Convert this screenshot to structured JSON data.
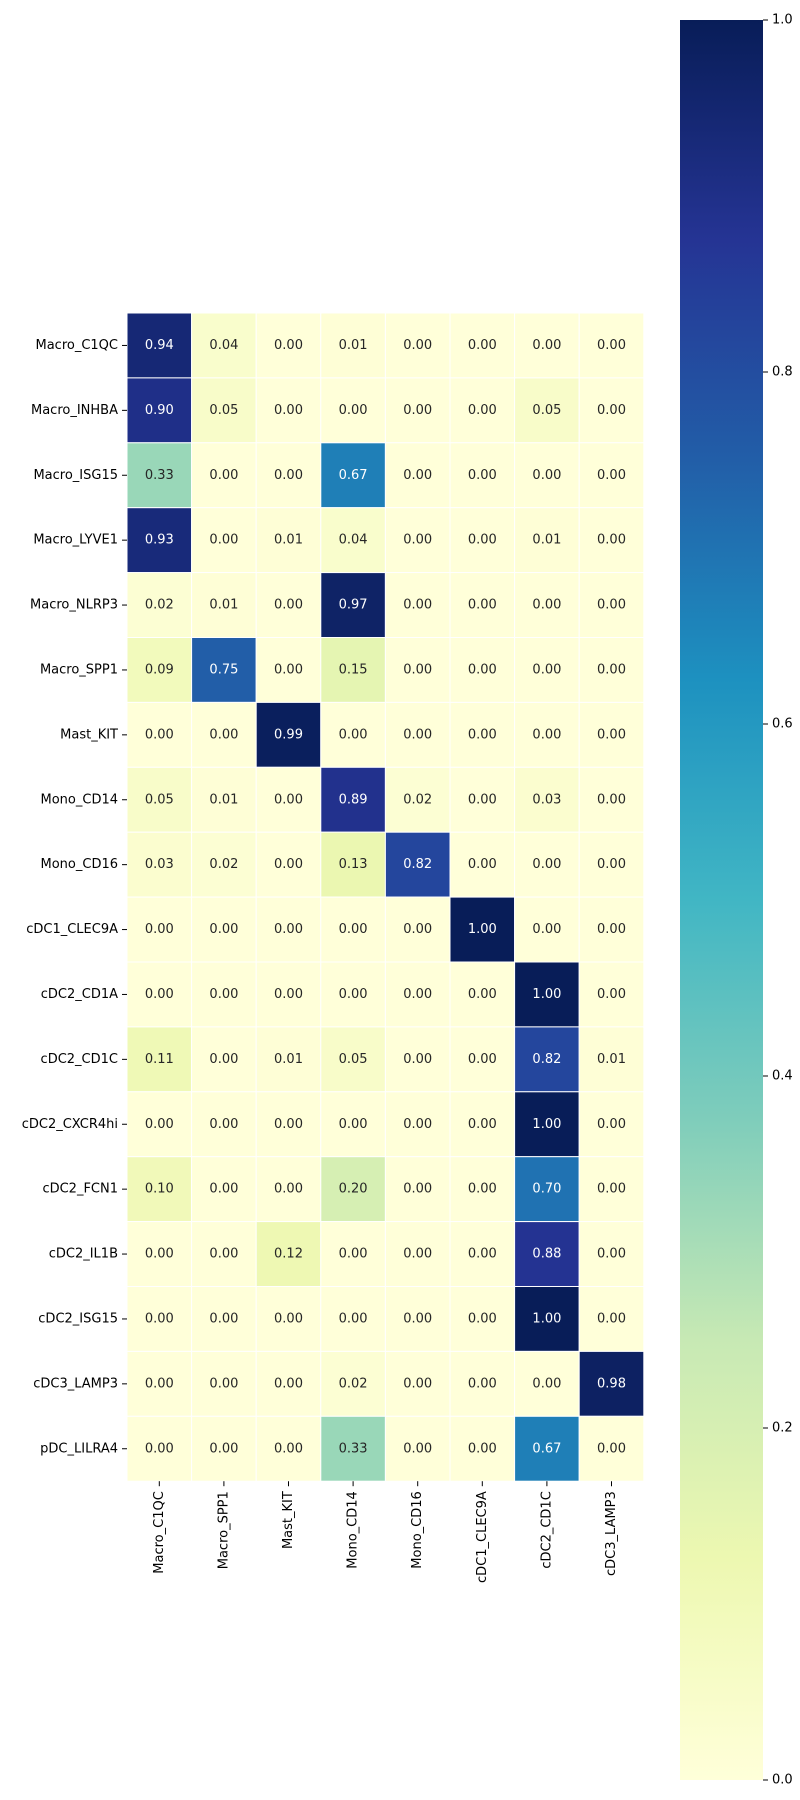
{
  "chart_data": {
    "type": "heatmap",
    "title": "",
    "xlabel": "",
    "ylabel": "",
    "x_categories": [
      "Macro_C1QC",
      "Macro_SPP1",
      "Mast_KIT",
      "Mono_CD14",
      "Mono_CD16",
      "cDC1_CLEC9A",
      "cDC2_CD1C",
      "cDC3_LAMP3"
    ],
    "y_categories": [
      "Macro_C1QC",
      "Macro_INHBA",
      "Macro_ISG15",
      "Macro_LYVE1",
      "Macro_NLRP3",
      "Macro_SPP1",
      "Mast_KIT",
      "Mono_CD14",
      "Mono_CD16",
      "cDC1_CLEC9A",
      "cDC2_CD1A",
      "cDC2_CD1C",
      "cDC2_CXCR4hi",
      "cDC2_FCN1",
      "cDC2_IL1B",
      "cDC2_ISG15",
      "cDC3_LAMP3",
      "pDC_LILRA4"
    ],
    "values": [
      [
        0.94,
        0.04,
        0.0,
        0.01,
        0.0,
        0.0,
        0.0,
        0.0
      ],
      [
        0.9,
        0.05,
        0.0,
        0.0,
        0.0,
        0.0,
        0.05,
        0.0
      ],
      [
        0.33,
        0.0,
        0.0,
        0.67,
        0.0,
        0.0,
        0.0,
        0.0
      ],
      [
        0.93,
        0.0,
        0.01,
        0.04,
        0.0,
        0.0,
        0.01,
        0.0
      ],
      [
        0.02,
        0.01,
        0.0,
        0.97,
        0.0,
        0.0,
        0.0,
        0.0
      ],
      [
        0.09,
        0.75,
        0.0,
        0.15,
        0.0,
        0.0,
        0.0,
        0.0
      ],
      [
        0.0,
        0.0,
        0.99,
        0.0,
        0.0,
        0.0,
        0.0,
        0.0
      ],
      [
        0.05,
        0.01,
        0.0,
        0.89,
        0.02,
        0.0,
        0.03,
        0.0
      ],
      [
        0.03,
        0.02,
        0.0,
        0.13,
        0.82,
        0.0,
        0.0,
        0.0
      ],
      [
        0.0,
        0.0,
        0.0,
        0.0,
        0.0,
        1.0,
        0.0,
        0.0
      ],
      [
        0.0,
        0.0,
        0.0,
        0.0,
        0.0,
        0.0,
        1.0,
        0.0
      ],
      [
        0.11,
        0.0,
        0.01,
        0.05,
        0.0,
        0.0,
        0.82,
        0.01
      ],
      [
        0.0,
        0.0,
        0.0,
        0.0,
        0.0,
        0.0,
        1.0,
        0.0
      ],
      [
        0.1,
        0.0,
        0.0,
        0.2,
        0.0,
        0.0,
        0.7,
        0.0
      ],
      [
        0.0,
        0.0,
        0.12,
        0.0,
        0.0,
        0.0,
        0.88,
        0.0
      ],
      [
        0.0,
        0.0,
        0.0,
        0.0,
        0.0,
        0.0,
        1.0,
        0.0
      ],
      [
        0.0,
        0.0,
        0.0,
        0.02,
        0.0,
        0.0,
        0.0,
        0.98
      ],
      [
        0.0,
        0.0,
        0.0,
        0.33,
        0.0,
        0.0,
        0.67,
        0.0
      ]
    ],
    "value_format": "0.00",
    "colormap": "YlGnBu",
    "colorbar": {
      "range": [
        0.0,
        1.0
      ],
      "ticks": [
        0.0,
        0.2,
        0.4,
        0.6,
        0.8,
        1.0
      ],
      "tick_labels": [
        "0.0",
        "0.2",
        "0.4",
        "0.6",
        "0.8",
        "1.0"
      ]
    },
    "grid": false,
    "legend": "colorbar-right"
  },
  "colors": {
    "cell_border": "#ffffff",
    "colormap_stops": [
      "#ffffd9",
      "#edf8b1",
      "#c7e9b4",
      "#7fcdbb",
      "#41b6c4",
      "#1d91c0",
      "#225ea8",
      "#253494",
      "#081d58"
    ],
    "text_dark": "#262626",
    "text_light": "#ffffff",
    "tick_color": "#000000"
  }
}
